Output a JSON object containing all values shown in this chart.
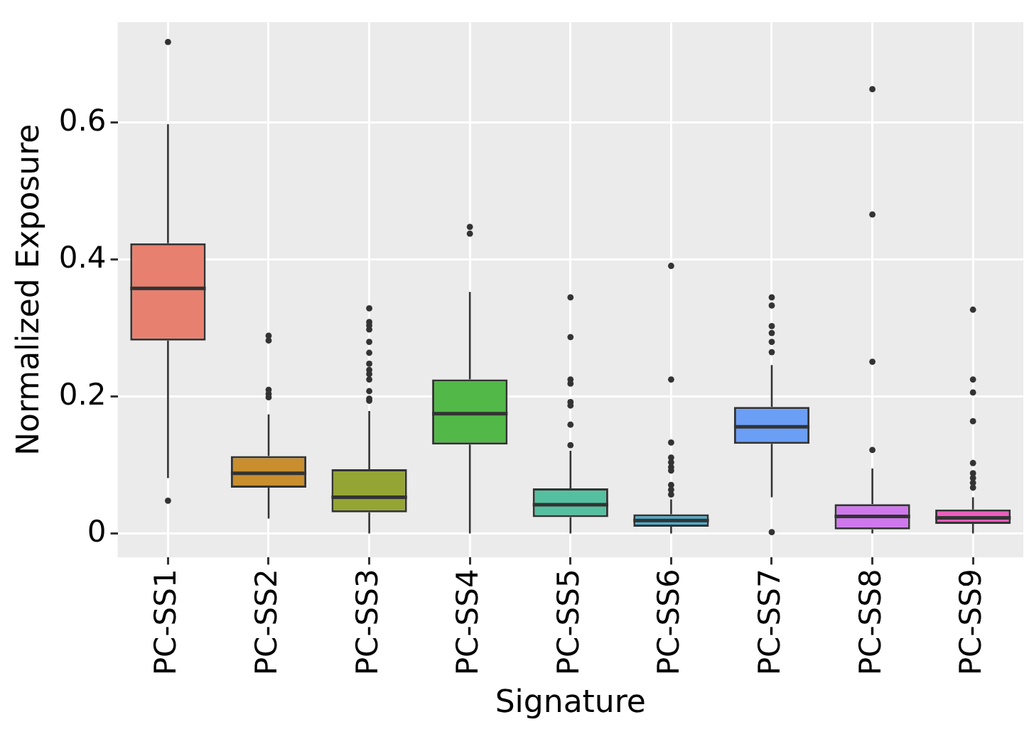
{
  "chart_data": {
    "type": "box",
    "xlabel": "Signature",
    "ylabel": "Normalized Exposure",
    "categories": [
      "PC-SS1",
      "PC-SS2",
      "PC-SS3",
      "PC-SS4",
      "PC-SS5",
      "PC-SS6",
      "PC-SS7",
      "PC-SS8",
      "PC-SS9"
    ],
    "colors": [
      "#e8806f",
      "#c98e2e",
      "#95a534",
      "#52b848",
      "#55c0a0",
      "#4ab0d2",
      "#6b9ef5",
      "#cf78ed",
      "#ea5fbd"
    ],
    "boxes": [
      {
        "low": 0.081,
        "q1": 0.282,
        "median": 0.358,
        "q3": 0.424,
        "high": 0.598,
        "outliers": [
          0.718,
          0.048
        ]
      },
      {
        "low": 0.022,
        "q1": 0.067,
        "median": 0.088,
        "q3": 0.113,
        "high": 0.174,
        "outliers": [
          0.289,
          0.282,
          0.21,
          0.204,
          0.199
        ]
      },
      {
        "low": 0,
        "q1": 0.031,
        "median": 0.053,
        "q3": 0.094,
        "high": 0.179,
        "outliers": [
          0.329,
          0.309,
          0.304,
          0.298,
          0.28,
          0.264,
          0.248,
          0.239,
          0.233,
          0.225,
          0.208,
          0.197,
          0.194
        ]
      },
      {
        "low": 0,
        "q1": 0.13,
        "median": 0.175,
        "q3": 0.225,
        "high": 0.353,
        "outliers": [
          0.448,
          0.438
        ]
      },
      {
        "low": 0,
        "q1": 0.024,
        "median": 0.042,
        "q3": 0.066,
        "high": 0.121,
        "outliers": [
          0.345,
          0.287,
          0.225,
          0.219,
          0.192,
          0.187,
          0.159,
          0.129
        ]
      },
      {
        "low": 0,
        "q1": 0.01,
        "median": 0.019,
        "q3": 0.028,
        "high": 0.05,
        "outliers": [
          0.391,
          0.225,
          0.133,
          0.111,
          0.104,
          0.097,
          0.092,
          0.071,
          0.064,
          0.057
        ]
      },
      {
        "low": 0.053,
        "q1": 0.131,
        "median": 0.156,
        "q3": 0.185,
        "high": 0.246,
        "outliers": [
          0.345,
          0.333,
          0.303,
          0.293,
          0.28,
          0.265,
          0.002
        ]
      },
      {
        "low": 0,
        "q1": 0.006,
        "median": 0.025,
        "q3": 0.043,
        "high": 0.095,
        "outliers": [
          0.649,
          0.466,
          0.251,
          0.122
        ]
      },
      {
        "low": 0,
        "q1": 0.014,
        "median": 0.023,
        "q3": 0.035,
        "high": 0.053,
        "outliers": [
          0.327,
          0.225,
          0.206,
          0.164,
          0.103,
          0.088,
          0.081,
          0.074,
          0.067
        ]
      }
    ],
    "ylim": [
      -0.035,
      0.747
    ],
    "yticks": [
      0,
      {
        "value": 0.2,
        "label": "0.2"
      },
      {
        "value": 0.4,
        "label": "0.4"
      },
      {
        "value": 0.6,
        "label": "0.6"
      }
    ],
    "grid": true,
    "legend": false
  }
}
